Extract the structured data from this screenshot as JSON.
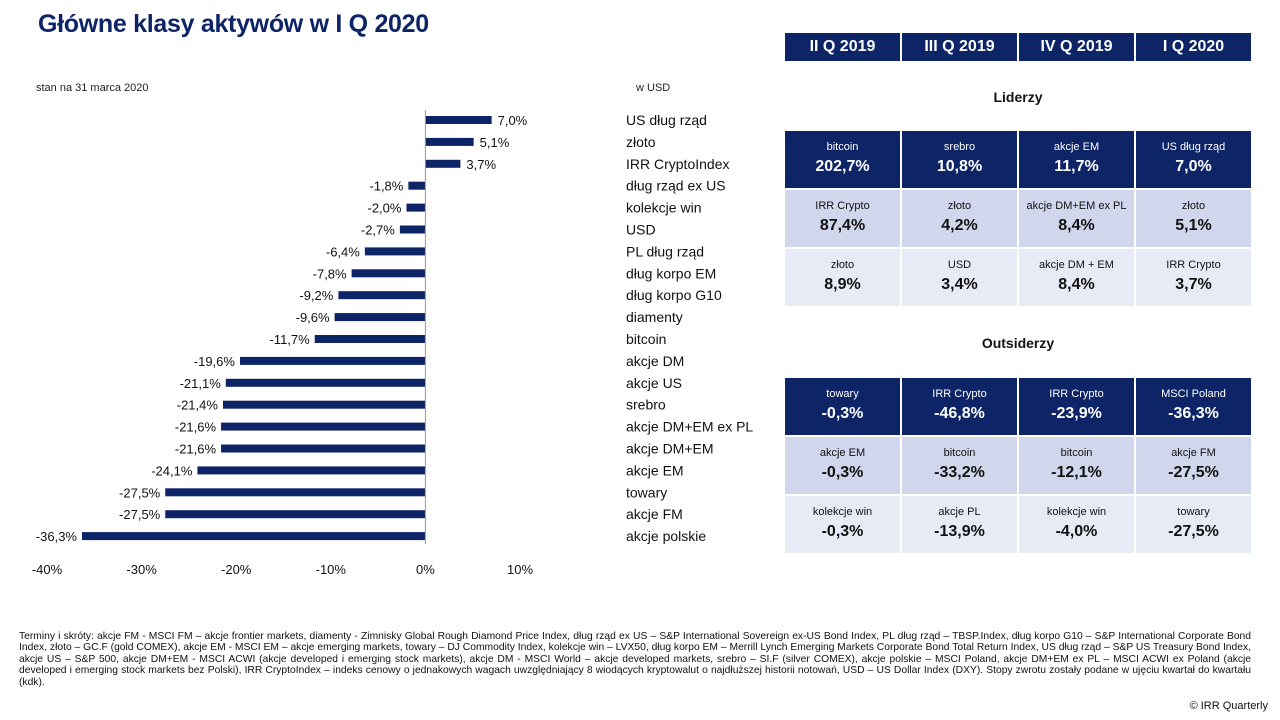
{
  "header": {
    "title": "Główne klasy aktywów w I Q 2020",
    "as_of": "stan na 31 marca 2020",
    "unit": "w USD"
  },
  "chart_data": {
    "type": "bar",
    "orientation": "horizontal",
    "categories": [
      "US dług rząd",
      "złoto",
      "IRR CryptoIndex",
      "dług rząd ex US",
      "kolekcje win",
      "USD",
      "PL dług rząd",
      "dług korpo EM",
      "dług korpo G10",
      "diamenty",
      "bitcoin",
      "akcje DM",
      "akcje US",
      "srebro",
      "akcje DM+EM ex PL",
      "akcje DM+EM",
      "akcje EM",
      "towary",
      "akcje FM",
      "akcje polskie"
    ],
    "values": [
      7.0,
      5.1,
      3.7,
      -1.8,
      -2.0,
      -2.7,
      -6.4,
      -7.8,
      -9.2,
      -9.6,
      -11.7,
      -19.6,
      -21.1,
      -21.4,
      -21.6,
      -21.6,
      -24.1,
      -27.5,
      -27.5,
      -36.3
    ],
    "value_labels": [
      "7,0%",
      "5,1%",
      "3,7%",
      "-1,8%",
      "-2,0%",
      "-2,7%",
      "-6,4%",
      "-7,8%",
      "-9,2%",
      "-9,6%",
      "-11,7%",
      "-19,6%",
      "-21,1%",
      "-21,4%",
      "-21,6%",
      "-21,6%",
      "-24,1%",
      "-27,5%",
      "-27,5%",
      "-36,3%"
    ],
    "xlim": [
      -40,
      10
    ],
    "x_ticks": [
      -40,
      -30,
      -20,
      -10,
      0,
      10
    ],
    "x_tick_labels": [
      "-40%",
      "-30%",
      "-20%",
      "-10%",
      "0%",
      "10%"
    ],
    "bar_color": "#0d2466",
    "grid": false,
    "legend": "none"
  },
  "quarters": [
    "II Q 2019",
    "III Q 2019",
    "IV Q 2019",
    "I Q 2020"
  ],
  "leaders": {
    "title": "Liderzy",
    "rows": [
      [
        {
          "name": "bitcoin",
          "value": "202,7%"
        },
        {
          "name": "srebro",
          "value": "10,8%"
        },
        {
          "name": "akcje EM",
          "value": "11,7%"
        },
        {
          "name": "US dług rząd",
          "value": "7,0%"
        }
      ],
      [
        {
          "name": "IRR Crypto",
          "value": "87,4%"
        },
        {
          "name": "złoto",
          "value": "4,2%"
        },
        {
          "name": "akcje DM+EM ex PL",
          "value": "8,4%"
        },
        {
          "name": "złoto",
          "value": "5,1%"
        }
      ],
      [
        {
          "name": "złoto",
          "value": "8,9%"
        },
        {
          "name": "USD",
          "value": "3,4%"
        },
        {
          "name": "akcje DM + EM",
          "value": "8,4%"
        },
        {
          "name": "IRR Crypto",
          "value": "3,7%"
        }
      ]
    ]
  },
  "outsiders": {
    "title": "Outsiderzy",
    "rows": [
      [
        {
          "name": "towary",
          "value": "-0,3%"
        },
        {
          "name": "IRR Crypto",
          "value": "-46,8%"
        },
        {
          "name": "IRR Crypto",
          "value": "-23,9%"
        },
        {
          "name": "MSCI Poland",
          "value": "-36,3%"
        }
      ],
      [
        {
          "name": "akcje EM",
          "value": "-0,3%"
        },
        {
          "name": "bitcoin",
          "value": "-33,2%"
        },
        {
          "name": "bitcoin",
          "value": "-12,1%"
        },
        {
          "name": "akcje FM",
          "value": "-27,5%"
        }
      ],
      [
        {
          "name": "kolekcje win",
          "value": "-0,3%"
        },
        {
          "name": "akcje PL",
          "value": "-13,9%"
        },
        {
          "name": "kolekcje win",
          "value": "-4,0%"
        },
        {
          "name": "towary",
          "value": "-27,5%"
        }
      ]
    ]
  },
  "footnote": "Terminy i skróty: akcje FM - MSCI FM – akcje frontier markets, diamenty - Zimnisky Global Rough Diamond Price Index, dług rząd ex US – S&P International Sovereign ex-US Bond Index, PL dług rząd – TBSP.Index, dług korpo G10 – S&P International Corporate Bond Index, złoto – GC.F (gold COMEX), akcje EM - MSCI EM – akcje emerging markets, towary – DJ Commodity Index, kolekcje win – LVX50, dług korpo EM – Merrill Lynch Emerging Markets Corporate Bond Total Return Index, US dług rząd – S&P US Treasury Bond Index, akcje US – S&P 500, akcje DM+EM - MSCI ACWI (akcje developed i emerging stock markets), akcje DM - MSCI World – akcje developed markets, srebro – SI.F (silver COMEX), akcje polskie – MSCI Poland, akcje DM+EM ex PL – MSCI ACWI ex Poland (akcje developed i emerging stock markets bez Polski), IRR CryptoIndex – indeks cenowy o jednakowych wagach uwzględniający 8 wiodących kryptowalut o najdłuższej historii notowań, USD – US Dollar Index (DXY). Stopy zwrotu zostały podane w ujęciu kwartał do kwartału (kdk).",
  "copyright": "© IRR Quarterly"
}
